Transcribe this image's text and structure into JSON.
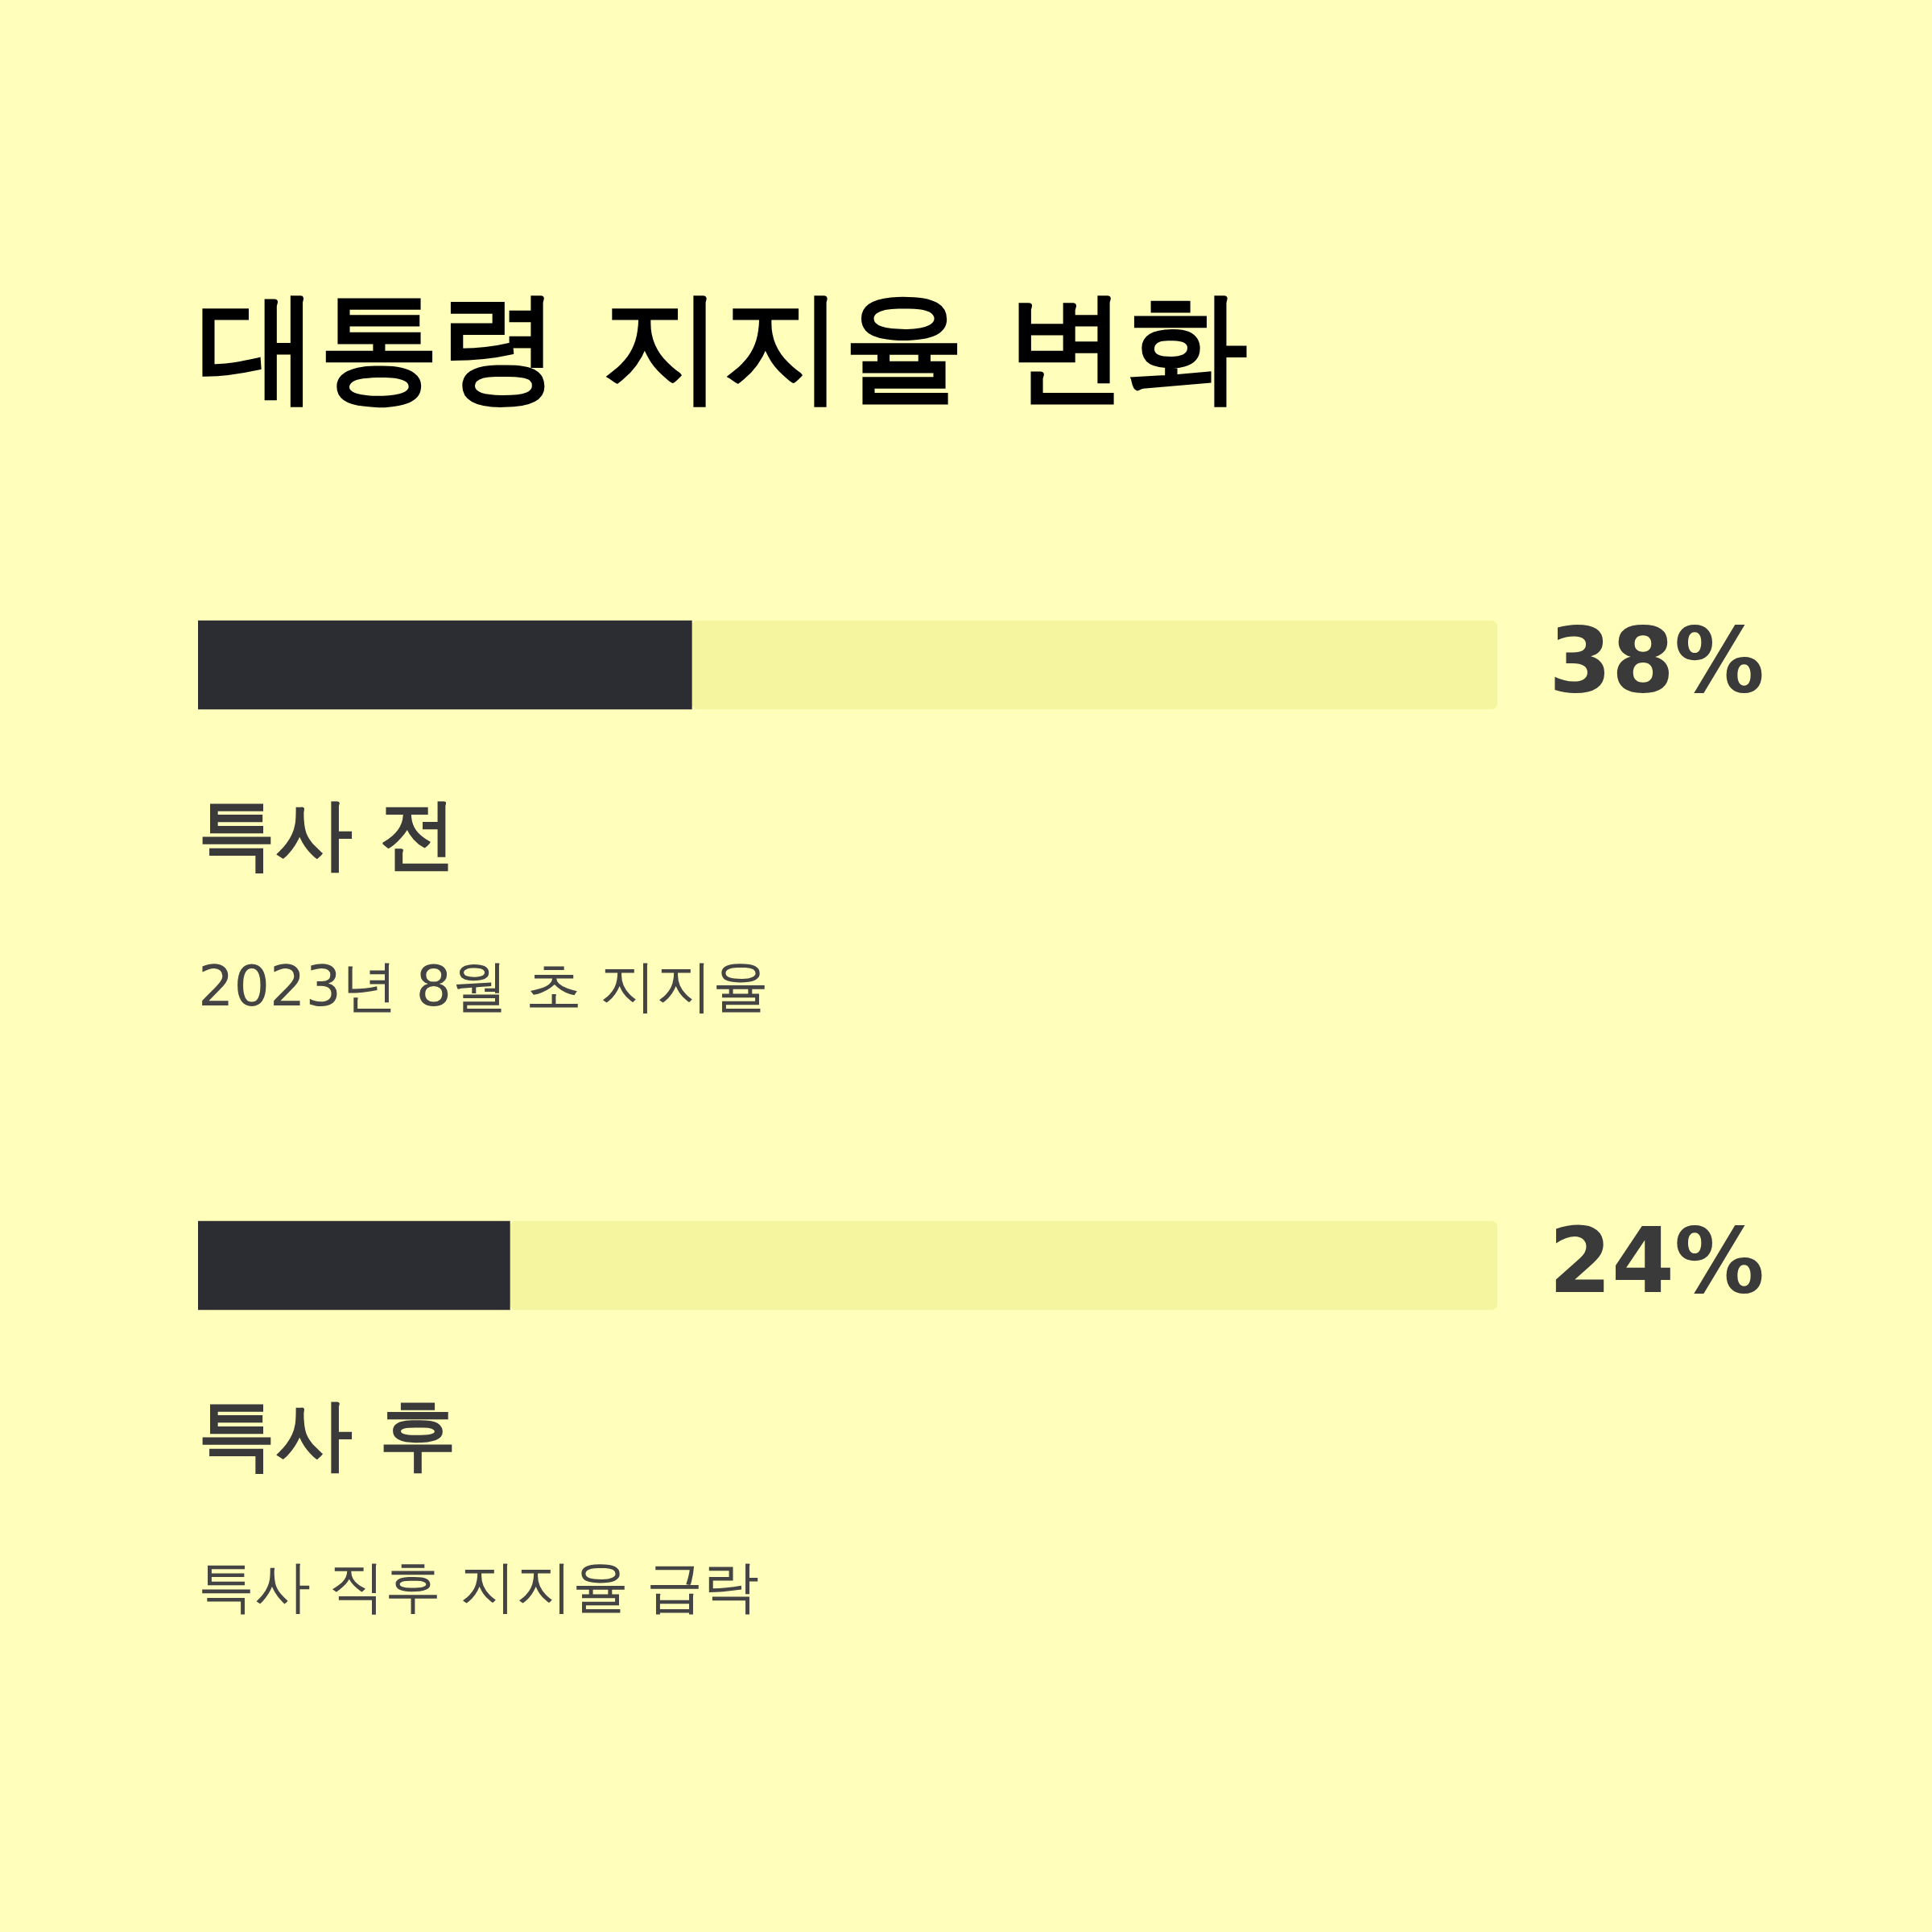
{
  "chart_data": {
    "type": "bar",
    "orientation": "horizontal",
    "title": "대통령 지지율 변화",
    "categories": [
      "특사 전",
      "특사 후"
    ],
    "stacked": true,
    "series": [
      {
        "color": "#2c2d33",
        "values": [
          38,
          24
        ],
        "value_labels": [
          "38%",
          "24%"
        ]
      },
      {
        "color": "#f5f5a0",
        "values": [
          62,
          76
        ]
      }
    ],
    "xlim": [
      0,
      100
    ],
    "tick_labels": false,
    "annotations": [
      "2023년 8월 초 지지율",
      "특사 직후 지지율 급락"
    ]
  }
}
